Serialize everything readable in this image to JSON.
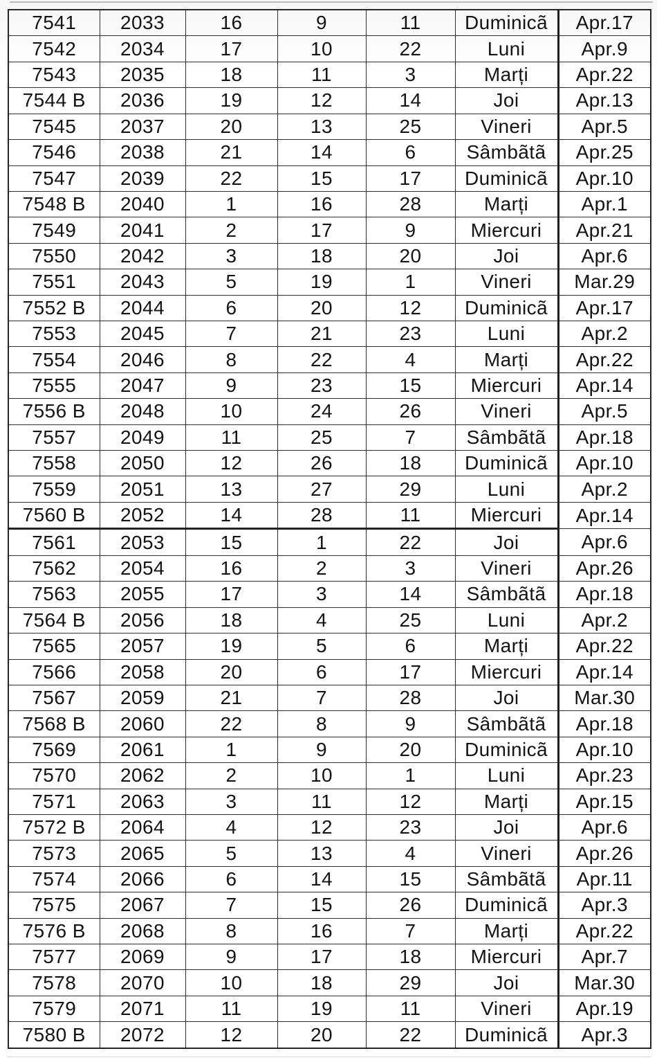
{
  "colors": {
    "background": "#ffffff",
    "text": "#141414",
    "border": "#2e2e2e",
    "thick_rule": "#1f1f1f"
  },
  "table": {
    "thick_separator_after_row": 20,
    "rows": [
      [
        "7541",
        "2033",
        "16",
        "9",
        "11",
        "Duminicã",
        "Apr.17"
      ],
      [
        "7542",
        "2034",
        "17",
        "10",
        "22",
        "Luni",
        "Apr.9"
      ],
      [
        "7543",
        "2035",
        "18",
        "11",
        "3",
        "Marți",
        "Apr.22"
      ],
      [
        "7544 B",
        "2036",
        "19",
        "12",
        "14",
        "Joi",
        "Apr.13"
      ],
      [
        "7545",
        "2037",
        "20",
        "13",
        "25",
        "Vineri",
        "Apr.5"
      ],
      [
        "7546",
        "2038",
        "21",
        "14",
        "6",
        "Sâmbãtã",
        "Apr.25"
      ],
      [
        "7547",
        "2039",
        "22",
        "15",
        "17",
        "Duminicã",
        "Apr.10"
      ],
      [
        "7548 B",
        "2040",
        "1",
        "16",
        "28",
        "Marți",
        "Apr.1"
      ],
      [
        "7549",
        "2041",
        "2",
        "17",
        "9",
        "Miercuri",
        "Apr.21"
      ],
      [
        "7550",
        "2042",
        "3",
        "18",
        "20",
        "Joi",
        "Apr.6"
      ],
      [
        "7551",
        "2043",
        "5",
        "19",
        "1",
        "Vineri",
        "Mar.29"
      ],
      [
        "7552 B",
        "2044",
        "6",
        "20",
        "12",
        "Duminicã",
        "Apr.17"
      ],
      [
        "7553",
        "2045",
        "7",
        "21",
        "23",
        "Luni",
        "Apr.2"
      ],
      [
        "7554",
        "2046",
        "8",
        "22",
        "4",
        "Marți",
        "Apr.22"
      ],
      [
        "7555",
        "2047",
        "9",
        "23",
        "15",
        "Miercuri",
        "Apr.14"
      ],
      [
        "7556 B",
        "2048",
        "10",
        "24",
        "26",
        "Vineri",
        "Apr.5"
      ],
      [
        "7557",
        "2049",
        "11",
        "25",
        "7",
        "Sâmbãtã",
        "Apr.18"
      ],
      [
        "7558",
        "2050",
        "12",
        "26",
        "18",
        "Duminicã",
        "Apr.10"
      ],
      [
        "7559",
        "2051",
        "13",
        "27",
        "29",
        "Luni",
        "Apr.2"
      ],
      [
        "7560 B",
        "2052",
        "14",
        "28",
        "11",
        "Miercuri",
        "Apr.14"
      ],
      [
        "7561",
        "2053",
        "15",
        "1",
        "22",
        "Joi",
        "Apr.6"
      ],
      [
        "7562",
        "2054",
        "16",
        "2",
        "3",
        "Vineri",
        "Apr.26"
      ],
      [
        "7563",
        "2055",
        "17",
        "3",
        "14",
        "Sâmbãtã",
        "Apr.18"
      ],
      [
        "7564 B",
        "2056",
        "18",
        "4",
        "25",
        "Luni",
        "Apr.2"
      ],
      [
        "7565",
        "2057",
        "19",
        "5",
        "6",
        "Marți",
        "Apr.22"
      ],
      [
        "7566",
        "2058",
        "20",
        "6",
        "17",
        "Miercuri",
        "Apr.14"
      ],
      [
        "7567",
        "2059",
        "21",
        "7",
        "28",
        "Joi",
        "Mar.30"
      ],
      [
        "7568 B",
        "2060",
        "22",
        "8",
        "9",
        "Sâmbãtã",
        "Apr.18"
      ],
      [
        "7569",
        "2061",
        "1",
        "9",
        "20",
        "Duminicã",
        "Apr.10"
      ],
      [
        "7570",
        "2062",
        "2",
        "10",
        "1",
        "Luni",
        "Apr.23"
      ],
      [
        "7571",
        "2063",
        "3",
        "11",
        "12",
        "Marți",
        "Apr.15"
      ],
      [
        "7572 B",
        "2064",
        "4",
        "12",
        "23",
        "Joi",
        "Apr.6"
      ],
      [
        "7573",
        "2065",
        "5",
        "13",
        "4",
        "Vineri",
        "Apr.26"
      ],
      [
        "7574",
        "2066",
        "6",
        "14",
        "15",
        "Sâmbãtã",
        "Apr.11"
      ],
      [
        "7575",
        "2067",
        "7",
        "15",
        "26",
        "Duminicã",
        "Apr.3"
      ],
      [
        "7576 B",
        "2068",
        "8",
        "16",
        "7",
        "Marți",
        "Apr.22"
      ],
      [
        "7577",
        "2069",
        "9",
        "17",
        "18",
        "Miercuri",
        "Apr.7"
      ],
      [
        "7578",
        "2070",
        "10",
        "18",
        "29",
        "Joi",
        "Mar.30"
      ],
      [
        "7579",
        "2071",
        "11",
        "19",
        "11",
        "Vineri",
        "Apr.19"
      ],
      [
        "7580 B",
        "2072",
        "12",
        "20",
        "22",
        "Duminicã",
        "Apr.3"
      ]
    ]
  }
}
